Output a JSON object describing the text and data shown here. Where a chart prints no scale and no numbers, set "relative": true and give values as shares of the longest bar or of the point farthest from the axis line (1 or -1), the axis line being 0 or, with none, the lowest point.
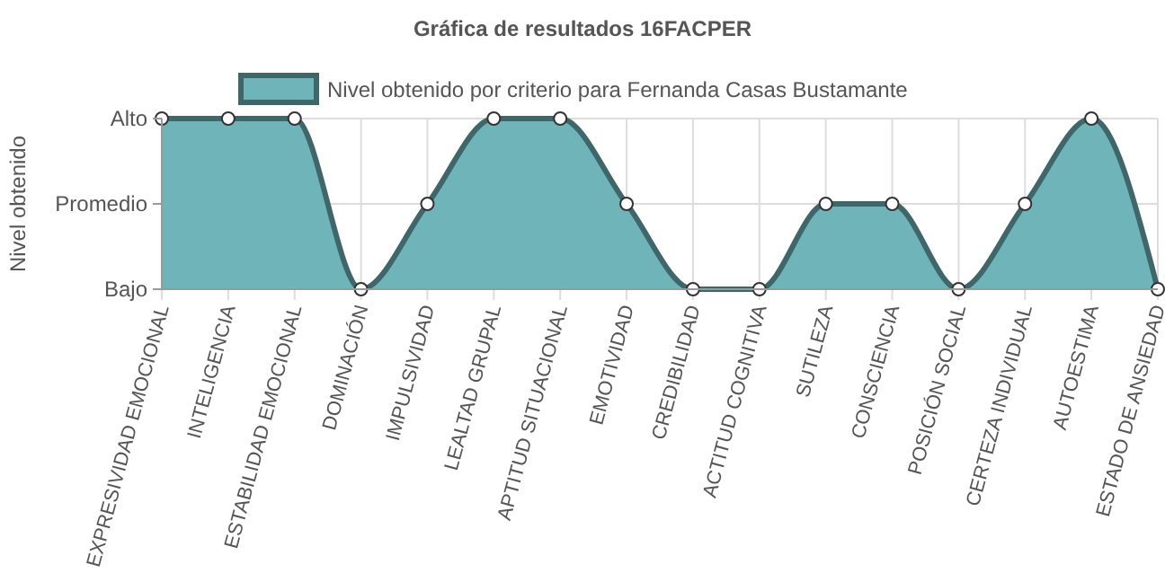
{
  "chart_data": {
    "type": "area",
    "title": "Gráfica de resultados 16FACPER",
    "ylabel": "Nivel obtenido",
    "categories": [
      "EXPRESIVIDAD EMOCIONAL",
      "INTELIGENCIA",
      "ESTABILIDAD EMOCIONAL",
      "DOMINACIÓN",
      "IMPULSIVIDAD",
      "LEALTAD GRUPAL",
      "APTITUD SITUACIONAL",
      "EMOTIVIDAD",
      "CREDIBILIDAD",
      "ACTITUD COGNITIVA",
      "SUTILEZA",
      "CONSCIENCIA",
      "POSICIÓN SOCIAL",
      "CERTEZA INDIVIDUAL",
      "AUTOESTIMA",
      "ESTADO DE ANSIEDAD"
    ],
    "series": [
      {
        "name": "Nivel obtenido por criterio para Fernanda Casas Bustamante",
        "color": "#6fb4b8",
        "values": [
          1,
          1,
          1,
          0,
          0.5,
          1,
          1,
          0.5,
          0,
          0,
          0.5,
          0.5,
          0,
          0.5,
          1,
          0
        ]
      }
    ],
    "relative": true,
    "annotations": [
      "Bajo",
      "Promedio",
      "Alto"
    ],
    "grid": true,
    "legend": "top",
    "marker": "circle",
    "line_style": "solid"
  }
}
